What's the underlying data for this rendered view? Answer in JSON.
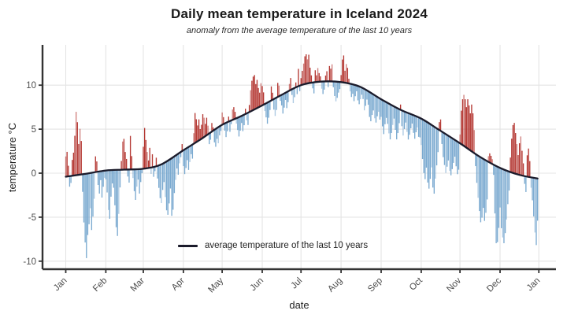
{
  "header": {
    "title": "Daily mean temperature in Iceland 2024",
    "subtitle": "anomaly from the average temperature of the last 10 years"
  },
  "chart_data": {
    "type": "bar",
    "title": "Daily mean temperature in Iceland 2024",
    "subtitle": "anomaly from the average temperature of the last 10 years",
    "xlabel": "date",
    "ylabel": "temperature °C",
    "legend": "average temperature of the last 10 years",
    "grid": true,
    "ylim": [
      -10.8,
      14.6
    ],
    "y_ticks": [
      -10,
      -5,
      0,
      5,
      10
    ],
    "x_tick_labels": [
      "Jan",
      "Feb",
      "Mar",
      "Apr",
      "May",
      "Jun",
      "Jul",
      "Aug",
      "Sep",
      "Oct",
      "Nov",
      "Dec",
      "Jan"
    ],
    "x_tick_days": [
      1,
      32,
      61,
      92,
      122,
      153,
      183,
      214,
      245,
      276,
      306,
      337,
      367
    ],
    "days_in_year": 366,
    "colors": {
      "above_average": "#b02d28",
      "below_average": "#74a5ce",
      "average_line": "#1b1b2b",
      "gridline": "#e4e4e4",
      "axis": "#333333",
      "tick_label": "#4d4d4d"
    },
    "average_curve": {
      "comment": "10-year average temperature, control points [day_of_year, deg_C]",
      "points": [
        [
          1,
          -0.4
        ],
        [
          15,
          -0.1
        ],
        [
          32,
          0.3
        ],
        [
          46,
          0.4
        ],
        [
          61,
          0.5
        ],
        [
          75,
          1.0
        ],
        [
          92,
          2.6
        ],
        [
          106,
          3.9
        ],
        [
          122,
          5.5
        ],
        [
          137,
          6.5
        ],
        [
          153,
          7.7
        ],
        [
          168,
          8.9
        ],
        [
          183,
          10.0
        ],
        [
          198,
          10.4
        ],
        [
          214,
          10.35
        ],
        [
          229,
          9.8
        ],
        [
          245,
          8.4
        ],
        [
          260,
          7.2
        ],
        [
          276,
          6.2
        ],
        [
          290,
          4.9
        ],
        [
          306,
          3.4
        ],
        [
          321,
          1.9
        ],
        [
          337,
          0.6
        ],
        [
          352,
          -0.2
        ],
        [
          366,
          -0.6
        ]
      ]
    },
    "daily_anomaly": [
      2.3,
      2.8,
      1.2,
      -1.2,
      -0.8,
      1.8,
      2.6,
      4.5,
      7.2,
      6.0,
      3.5,
      5.2,
      3.8,
      -2.0,
      -5.5,
      -7.8,
      -9.6,
      -7.0,
      -5.8,
      -4.0,
      -6.5,
      -5.0,
      -3.0,
      1.8,
      1.2,
      -1.5,
      -2.5,
      -1.0,
      -3.0,
      -1.8,
      -0.8,
      -1.0,
      -2.5,
      -4.5,
      -5.5,
      -3.0,
      -1.5,
      -2.0,
      -4.0,
      -6.5,
      -7.5,
      -5.0,
      -2.0,
      1.0,
      3.2,
      3.5,
      2.0,
      1.2,
      -0.8,
      -1.5,
      3.8,
      1.5,
      -1.0,
      -2.5,
      -3.5,
      -2.0,
      -1.2,
      -2.8,
      -1.5,
      -0.5,
      2.5,
      4.6,
      3.2,
      1.8,
      0.8,
      2.2,
      -0.8,
      1.4,
      -1.2,
      -0.6,
      0.9,
      -1.5,
      -2.6,
      -3.8,
      -4.4,
      -3.0,
      -2.2,
      -4.0,
      -5.6,
      -6.2,
      -5.0,
      -3.4,
      -6.6,
      -6.0,
      -4.2,
      -2.8,
      -1.6,
      -2.4,
      -1.2,
      -0.6,
      0.8,
      -1.8,
      -2.8,
      -2.2,
      -1.4,
      -2.6,
      -1.8,
      -1.0,
      -1.6,
      1.2,
      3.4,
      2.6,
      1.8,
      2.4,
      1.2,
      1.6,
      2.7,
      2.2,
      1.4,
      2.0,
      1.0,
      -1.2,
      -0.8,
      1.0,
      0.4,
      -1.4,
      -2.0,
      -1.2,
      -1.8,
      -1.0,
      -0.6,
      1.4,
      0.8,
      -0.8,
      -1.6,
      -1.0,
      0.6,
      -1.2,
      -0.4,
      1.2,
      1.4,
      0.8,
      -0.6,
      -1.4,
      -2.2,
      -1.6,
      -0.8,
      -1.8,
      -1.2,
      0.6,
      -0.8,
      -1.4,
      0.8,
      2.4,
      3.4,
      3.8,
      3.9,
      2.8,
      3.2,
      2.2,
      1.6,
      2.6,
      2.2,
      1.4,
      -0.8,
      -1.6,
      -2.4,
      -1.8,
      -1.0,
      1.6,
      0.8,
      -1.2,
      -2.0,
      -1.4,
      1.6,
      1.2,
      -0.6,
      -1.2,
      -2.2,
      -1.6,
      -0.8,
      -1.8,
      -1.2,
      0.8,
      1.4,
      -0.6,
      -1.6,
      -1.0,
      0.6,
      -0.8,
      2.0,
      -0.6,
      0.8,
      1.6,
      2.4,
      3.2,
      3.4,
      2.8,
      3.3,
      1.8,
      0.9,
      -0.6,
      -1.2,
      1.4,
      0.8,
      1.6,
      1.0,
      0.6,
      -0.8,
      -1.4,
      -0.9,
      0.7,
      1.2,
      -0.6,
      1.8,
      1.5,
      2.0,
      -0.6,
      -1.6,
      -2.2,
      -1.8,
      -1.2,
      -0.8,
      0.8,
      2.6,
      3.1,
      1.4,
      2.2,
      1.8,
      0.6,
      -0.8,
      -1.4,
      -1.0,
      -1.8,
      -1.2,
      -0.6,
      -1.6,
      -2.0,
      -1.4,
      -0.8,
      -1.2,
      -2.4,
      -1.8,
      -1.0,
      -1.5,
      -2.8,
      -3.2,
      -2.4,
      -1.8,
      -2.6,
      -3.0,
      -2.2,
      -1.6,
      -2.4,
      -2.0,
      -3.0,
      -3.8,
      -2.6,
      -1.8,
      -2.4,
      -3.4,
      -4.0,
      -3.2,
      -2.2,
      -1.4,
      -2.6,
      -3.6,
      -2.8,
      -1.6,
      0.6,
      -1.8,
      -2.8,
      -2.0,
      -1.2,
      -2.2,
      -3.0,
      -2.4,
      -1.6,
      -1.0,
      -2.0,
      -2.6,
      -1.8,
      -1.2,
      -2.2,
      -2.2,
      -3.0,
      -4.5,
      -6.0,
      -6.6,
      -5.2,
      -6.8,
      -7.4,
      -6.2,
      -4.8,
      -7.0,
      -7.6,
      -5.8,
      -4.2,
      -2.6,
      0.9,
      1.3,
      -1.4,
      -2.8,
      -3.6,
      -4.4,
      -3.6,
      -2.8,
      -3.9,
      -4.3,
      -3.5,
      -2.7,
      -1.9,
      -2.9,
      -3.7,
      -3.1,
      1.0,
      3.8,
      5.2,
      5.8,
      5.4,
      4.6,
      5.6,
      5.0,
      4.2,
      5.3,
      4.4,
      2.6,
      -1.4,
      -3.2,
      -4.8,
      -6.2,
      -7.4,
      -6.8,
      -5.6,
      -7.0,
      -6.0,
      -4.4,
      0.6,
      1.0,
      0.8,
      0.5,
      -1.2,
      -5.5,
      -8.8,
      -8.6,
      -6.9,
      -4.5,
      -6.8,
      -7.8,
      -8.4,
      -7.2,
      -5.6,
      -3.8,
      -2.2,
      1.6,
      3.8,
      5.4,
      5.7,
      4.6,
      3.4,
      2.2,
      3.6,
      4.4,
      2.8,
      1.4,
      -0.9,
      -1.8,
      2.4,
      3.2,
      1.8,
      -1.2,
      -2.6,
      -4.4,
      -6.2,
      -7.6,
      -4.8
    ]
  }
}
